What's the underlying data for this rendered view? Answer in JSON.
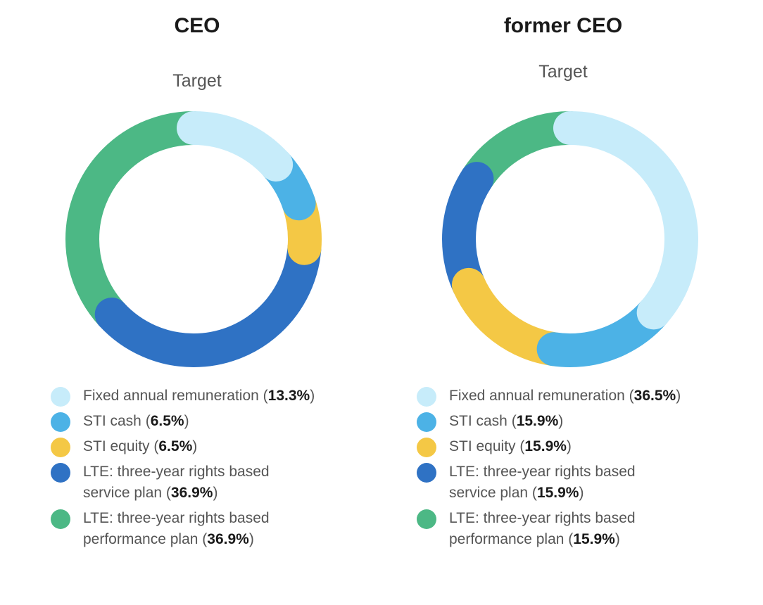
{
  "chart_data": [
    {
      "type": "pie",
      "title": "CEO",
      "subtitle": "Target",
      "series": [
        {
          "name": "Fixed annual remuneration",
          "legend": "Fixed annual remuneration",
          "value": 13.3,
          "pct_label": "13.3%",
          "color": "#c7ecfa"
        },
        {
          "name": "STI cash",
          "legend": "STI cash",
          "value": 6.5,
          "pct_label": "6.5%",
          "color": "#4cb2e6"
        },
        {
          "name": "STI equity",
          "legend": "STI equity",
          "value": 6.5,
          "pct_label": "6.5%",
          "color": "#f4c845"
        },
        {
          "name": "LTE: three-year rights based service plan",
          "legend": "LTE: three-year rights based\nservice plan",
          "value": 36.9,
          "pct_label": "36.9%",
          "color": "#2f72c4"
        },
        {
          "name": "LTE: three-year rights based performance plan",
          "legend": "LTE: three-year rights based\nperformance plan",
          "value": 36.9,
          "pct_label": "36.9%",
          "color": "#4cb885"
        }
      ]
    },
    {
      "type": "pie",
      "title": "former CEO",
      "subtitle": "Target",
      "series": [
        {
          "name": "Fixed annual remuneration",
          "legend": "Fixed annual remuneration",
          "value": 36.5,
          "pct_label": "36.5%",
          "color": "#c7ecfa"
        },
        {
          "name": "STI cash",
          "legend": "STI cash",
          "value": 15.9,
          "pct_label": "15.9%",
          "color": "#4cb2e6"
        },
        {
          "name": "STI equity",
          "legend": "STI equity",
          "value": 15.9,
          "pct_label": "15.9%",
          "color": "#f4c845"
        },
        {
          "name": "LTE: three-year rights based service plan",
          "legend": "LTE: three-year rights based\nservice plan",
          "value": 15.9,
          "pct_label": "15.9%",
          "color": "#2f72c4"
        },
        {
          "name": "LTE: three-year rights based performance plan",
          "legend": "LTE: three-year rights based\nperformance plan",
          "value": 15.9,
          "pct_label": "15.9%",
          "color": "#4cb885"
        }
      ]
    }
  ]
}
